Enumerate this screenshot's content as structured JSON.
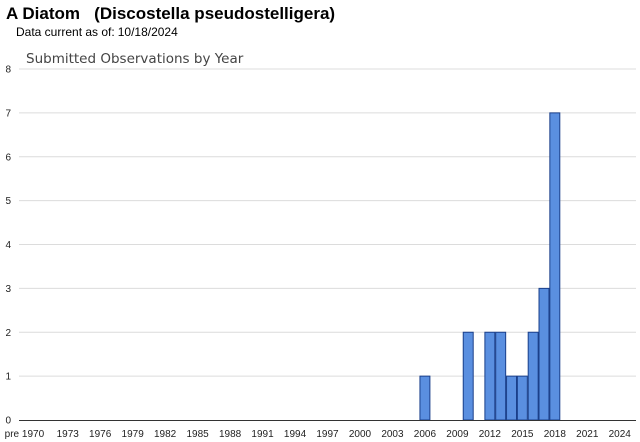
{
  "page": {
    "title": "A Diatom   (Discostella pseudostelligera)",
    "data_current_label": "Data current as of:",
    "data_current_date": "10/18/2024"
  },
  "chart_data": {
    "type": "bar",
    "title": "Submitted Observations by Year",
    "xlabel": "",
    "ylabel": "",
    "ylim": [
      0,
      8
    ],
    "yticks": [
      0,
      1,
      2,
      3,
      4,
      5,
      6,
      7,
      8
    ],
    "grid": true,
    "legend": "none",
    "bar_color": "#5a8fe0",
    "bar_edge_color": "#1a3f8a",
    "xrange": [
      "pre 1970",
      2025
    ],
    "xtick_labels": [
      "pre 1970",
      "1973",
      "1976",
      "1979",
      "1982",
      "1985",
      "1988",
      "1991",
      "1994",
      "1997",
      "2000",
      "2003",
      "2006",
      "2009",
      "2012",
      "2015",
      "2018",
      "2021",
      "2024"
    ],
    "categories": [
      "2006",
      "2010",
      "2012",
      "2013",
      "2014",
      "2015",
      "2016",
      "2017",
      "2018"
    ],
    "values": [
      1,
      2,
      2,
      2,
      1,
      1,
      2,
      3,
      7
    ]
  }
}
